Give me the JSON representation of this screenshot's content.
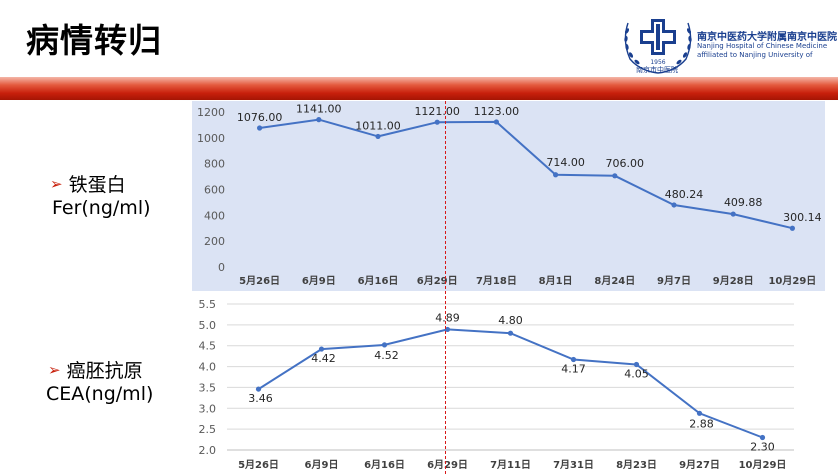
{
  "title": "病情转归",
  "logo": {
    "name": "南京中医药大学附属南京中医院",
    "english": "Nanjing Hospital of Chinese Medicine affiliated to Nanjing University of Chinese Medicine",
    "year": "1956",
    "seal": "南京市中医院"
  },
  "labels": {
    "fer": {
      "name": "铁蛋白",
      "unit": "Fer(ng/ml)"
    },
    "cea": {
      "name": "癌胚抗原",
      "unit": "CEA(ng/ml)"
    }
  },
  "colors": {
    "line": "#4472c4",
    "panel_bg": "#dbe3f4",
    "accent": "#c8200c",
    "divider": "#d81818"
  },
  "chart_data": [
    {
      "type": "line",
      "categories": [
        "5月26日",
        "6月9日",
        "6月16日",
        "6月29日",
        "7月18日",
        "8月1日",
        "8月24日",
        "9月7日",
        "9月28日",
        "10月29日"
      ],
      "series": [
        {
          "values": [
            1076.0,
            1141.0,
            1011.0,
            1121.0,
            1123.0,
            714.0,
            706.0,
            480.24,
            409.88,
            300.14
          ]
        }
      ],
      "data_labels": [
        "1076.00",
        "1141.00",
        "1011.00",
        "1121.00",
        "1123.00",
        "714.00",
        "706.00",
        "480.24",
        "409.88",
        "300.14"
      ],
      "yticks": [
        "0",
        "200",
        "400",
        "600",
        "800",
        "1000",
        "1200"
      ],
      "ylim": [
        0,
        1200
      ],
      "grid": false
    },
    {
      "type": "line",
      "categories": [
        "5月26日",
        "6月9日",
        "6月16日",
        "6月29日",
        "7月11日",
        "7月31日",
        "8月23日",
        "9月27日",
        "10月29日"
      ],
      "series": [
        {
          "values": [
            3.46,
            4.42,
            4.52,
            4.89,
            4.8,
            4.17,
            4.05,
            2.88,
            2.3
          ]
        }
      ],
      "data_labels": [
        "3.46",
        "4.42",
        "4.52",
        "4.89",
        "4.80",
        "4.17",
        "4.05",
        "2.88",
        "2.30"
      ],
      "yticks": [
        "2.0",
        "2.5",
        "3.0",
        "3.5",
        "4.0",
        "4.5",
        "5.0",
        "5.5"
      ],
      "ylim": [
        2.0,
        5.5
      ],
      "grid": true
    }
  ]
}
